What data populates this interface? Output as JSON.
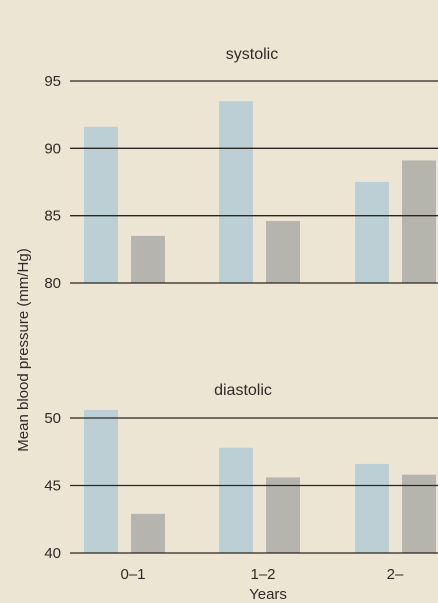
{
  "chart_data": {
    "type": "bar",
    "ylabel": "Mean blood pressure (mm/Hg)",
    "xlabel": "Years",
    "categories": [
      "0–1",
      "1–2",
      "2–"
    ],
    "colors": [
      "#bccfd4",
      "#b5b5ad"
    ],
    "panels": [
      {
        "title": "systolic",
        "ylim": [
          80,
          95
        ],
        "yticks": [
          "80",
          "85",
          "90",
          "95"
        ],
        "series": [
          {
            "values": [
              91.6,
              93.5,
              87.5
            ]
          },
          {
            "values": [
              83.5,
              84.6,
              89.1
            ]
          }
        ]
      },
      {
        "title": "diastolic",
        "ylim": [
          40,
          50
        ],
        "yticks": [
          "40",
          "45",
          "50"
        ],
        "series": [
          {
            "values": [
              50.6,
              47.8,
              46.6
            ]
          },
          {
            "values": [
              42.9,
              45.6,
              45.8
            ]
          }
        ]
      }
    ]
  }
}
